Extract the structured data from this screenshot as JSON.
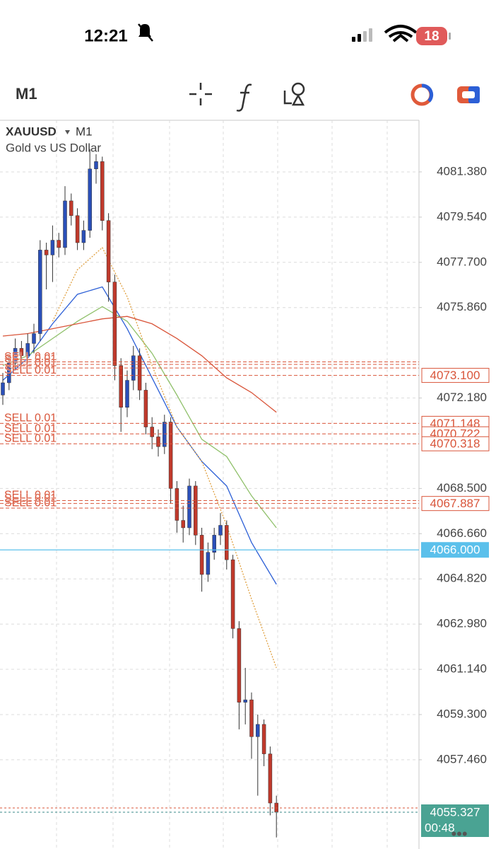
{
  "status_bar": {
    "time": "12:21",
    "battery": "18"
  },
  "toolbar": {
    "timeframe": "M1"
  },
  "chart": {
    "type": "candlestick",
    "symbol": "XAUUSD",
    "timeframe": "M1",
    "description": "Gold vs US Dollar",
    "up_color": "#2a4fb8",
    "down_color": "#c0392b",
    "ylim": [
      4053.83,
      4083.48
    ],
    "yticks": [
      {
        "value": 4081.38,
        "label": "4081.380"
      },
      {
        "value": 4079.54,
        "label": "4079.540"
      },
      {
        "value": 4077.7,
        "label": "4077.700"
      },
      {
        "value": 4075.86,
        "label": "4075.860"
      },
      {
        "value": 4072.18,
        "label": "4072.180"
      },
      {
        "value": 4068.5,
        "label": "4068.500"
      },
      {
        "value": 4066.66,
        "label": "4066.660"
      },
      {
        "value": 4064.82,
        "label": "4064.820"
      },
      {
        "value": 4062.98,
        "label": "4062.980"
      },
      {
        "value": 4061.14,
        "label": "4061.140"
      },
      {
        "value": 4059.3,
        "label": "4059.300"
      },
      {
        "value": 4057.46,
        "label": "4057.460"
      }
    ],
    "grid": true,
    "candles": [
      [
        4072.3,
        4073.2,
        4071.9,
        4072.8
      ],
      [
        4072.8,
        4073.9,
        4072.5,
        4073.6
      ],
      [
        4073.6,
        4074.6,
        4073.3,
        4074.2
      ],
      [
        4074.2,
        4074.5,
        4073.5,
        4073.9
      ],
      [
        4073.9,
        4074.8,
        4073.6,
        4074.4
      ],
      [
        4074.4,
        4075.2,
        4074.0,
        4074.8
      ],
      [
        4074.8,
        4078.6,
        4074.5,
        4078.2
      ],
      [
        4078.2,
        4078.5,
        4076.6,
        4078.0
      ],
      [
        4078.0,
        4079.2,
        4076.9,
        4078.6
      ],
      [
        4078.6,
        4078.9,
        4077.9,
        4078.3
      ],
      [
        4078.3,
        4080.8,
        4078.0,
        4080.2
      ],
      [
        4080.2,
        4080.5,
        4079.2,
        4079.6
      ],
      [
        4079.6,
        4079.9,
        4078.2,
        4078.5
      ],
      [
        4078.5,
        4079.4,
        4078.2,
        4079.0
      ],
      [
        4079.0,
        4082.3,
        4078.7,
        4081.5
      ],
      [
        4081.5,
        4082.1,
        4080.9,
        4081.8
      ],
      [
        4081.8,
        4082.0,
        4079.0,
        4079.4
      ],
      [
        4079.4,
        4079.7,
        4076.1,
        4076.9
      ],
      [
        4076.9,
        4077.2,
        4072.9,
        4073.5
      ],
      [
        4073.5,
        4073.8,
        4070.8,
        4071.8
      ],
      [
        4071.8,
        4073.3,
        4071.4,
        4072.9
      ],
      [
        4072.9,
        4074.3,
        4072.5,
        4073.9
      ],
      [
        4073.9,
        4074.2,
        4072.1,
        4072.5
      ],
      [
        4072.5,
        4072.8,
        4070.7,
        4071.0
      ],
      [
        4071.0,
        4071.4,
        4070.1,
        4070.6
      ],
      [
        4070.6,
        4070.9,
        4069.8,
        4070.2
      ],
      [
        4070.2,
        4071.5,
        4069.9,
        4071.2
      ],
      [
        4071.2,
        4071.4,
        4067.9,
        4068.5
      ],
      [
        4068.5,
        4068.8,
        4066.7,
        4067.2
      ],
      [
        4067.2,
        4067.8,
        4066.3,
        4066.9
      ],
      [
        4066.9,
        4068.9,
        4066.6,
        4068.6
      ],
      [
        4068.6,
        4068.8,
        4066.2,
        4066.6
      ],
      [
        4066.6,
        4066.9,
        4064.3,
        4065.0
      ],
      [
        4065.0,
        4066.3,
        4064.7,
        4065.9
      ],
      [
        4065.9,
        4066.9,
        4065.6,
        4066.6
      ],
      [
        4066.6,
        4067.5,
        4066.2,
        4067.0
      ],
      [
        4067.0,
        4067.2,
        4065.2,
        4065.6
      ],
      [
        4065.6,
        4065.8,
        4062.4,
        4062.8
      ],
      [
        4062.8,
        4063.1,
        4058.7,
        4059.8
      ],
      [
        4059.8,
        4061.2,
        4058.9,
        4059.9
      ],
      [
        4059.9,
        4060.2,
        4057.5,
        4058.4
      ],
      [
        4058.4,
        4059.3,
        4056.0,
        4058.9
      ],
      [
        4058.9,
        4059.1,
        4057.2,
        4057.7
      ],
      [
        4057.7,
        4058.0,
        4055.2,
        4055.7
      ],
      [
        4055.7,
        4056.0,
        4054.3,
        4055.327
      ]
    ],
    "ma_index": [
      0,
      4,
      8,
      12,
      16,
      20,
      24,
      28,
      32,
      36,
      40,
      44
    ],
    "moving_averages": [
      {
        "color": "#2c5fd6",
        "dash": false,
        "values": [
          4072.9,
          4073.8,
          4075.2,
          4076.4,
          4076.7,
          4075.0,
          4073.0,
          4071.0,
          4069.6,
          4068.6,
          4066.3,
          4064.6
        ]
      },
      {
        "color": "#8fc06a",
        "dash": false,
        "values": [
          4073.5,
          4073.9,
          4074.6,
          4075.3,
          4075.9,
          4075.3,
          4074.0,
          4072.3,
          4070.5,
          4069.8,
          4068.2,
          4066.9
        ]
      },
      {
        "color": "#e0a040",
        "dash": true,
        "values": [
          null,
          null,
          4075.3,
          4077.4,
          4078.3,
          4076.3,
          4073.5,
          4071.0,
          4069.6,
          4067.0,
          4064.0,
          4061.2
        ]
      },
      {
        "color": "#d9553a",
        "dash": false,
        "values": [
          4074.7,
          4074.8,
          4075.0,
          4075.2,
          4075.4,
          4075.5,
          4075.2,
          4074.6,
          4073.9,
          4073.0,
          4072.4,
          4071.6
        ]
      }
    ],
    "orders": [
      {
        "price": 4073.648,
        "label": "SELL 0.01"
      },
      {
        "price": 4073.55,
        "label": "SELL 0.01"
      },
      {
        "price": 4073.4,
        "label": "SELL 0.01"
      },
      {
        "price": 4073.1,
        "label": "SELL 0.01"
      },
      {
        "price": 4071.148,
        "label": "SELL 0.01"
      },
      {
        "price": 4070.722,
        "label": "SELL 0.01"
      },
      {
        "price": 4070.318,
        "label": "SELL 0.01"
      },
      {
        "price": 4068.009,
        "label": "SELL 0.01"
      },
      {
        "price": 4067.887,
        "label": "SELL 0.01"
      },
      {
        "price": 4067.7,
        "label": "SELL 0.01"
      }
    ],
    "order_tags": [
      {
        "value": 4073.1,
        "label": "4073.100"
      },
      {
        "value": 4071.148,
        "label": "4071.148"
      },
      {
        "value": 4070.722,
        "label": "4070.722"
      },
      {
        "value": 4070.318,
        "label": "4070.318"
      },
      {
        "value": 4067.887,
        "label": "4067.887"
      }
    ],
    "alert_line": {
      "value": 4066,
      "label": "4066.000"
    },
    "ask_price": 4055.5,
    "bid": {
      "value": 4055.327,
      "label": "4055.327"
    },
    "countdown": "00:48"
  }
}
